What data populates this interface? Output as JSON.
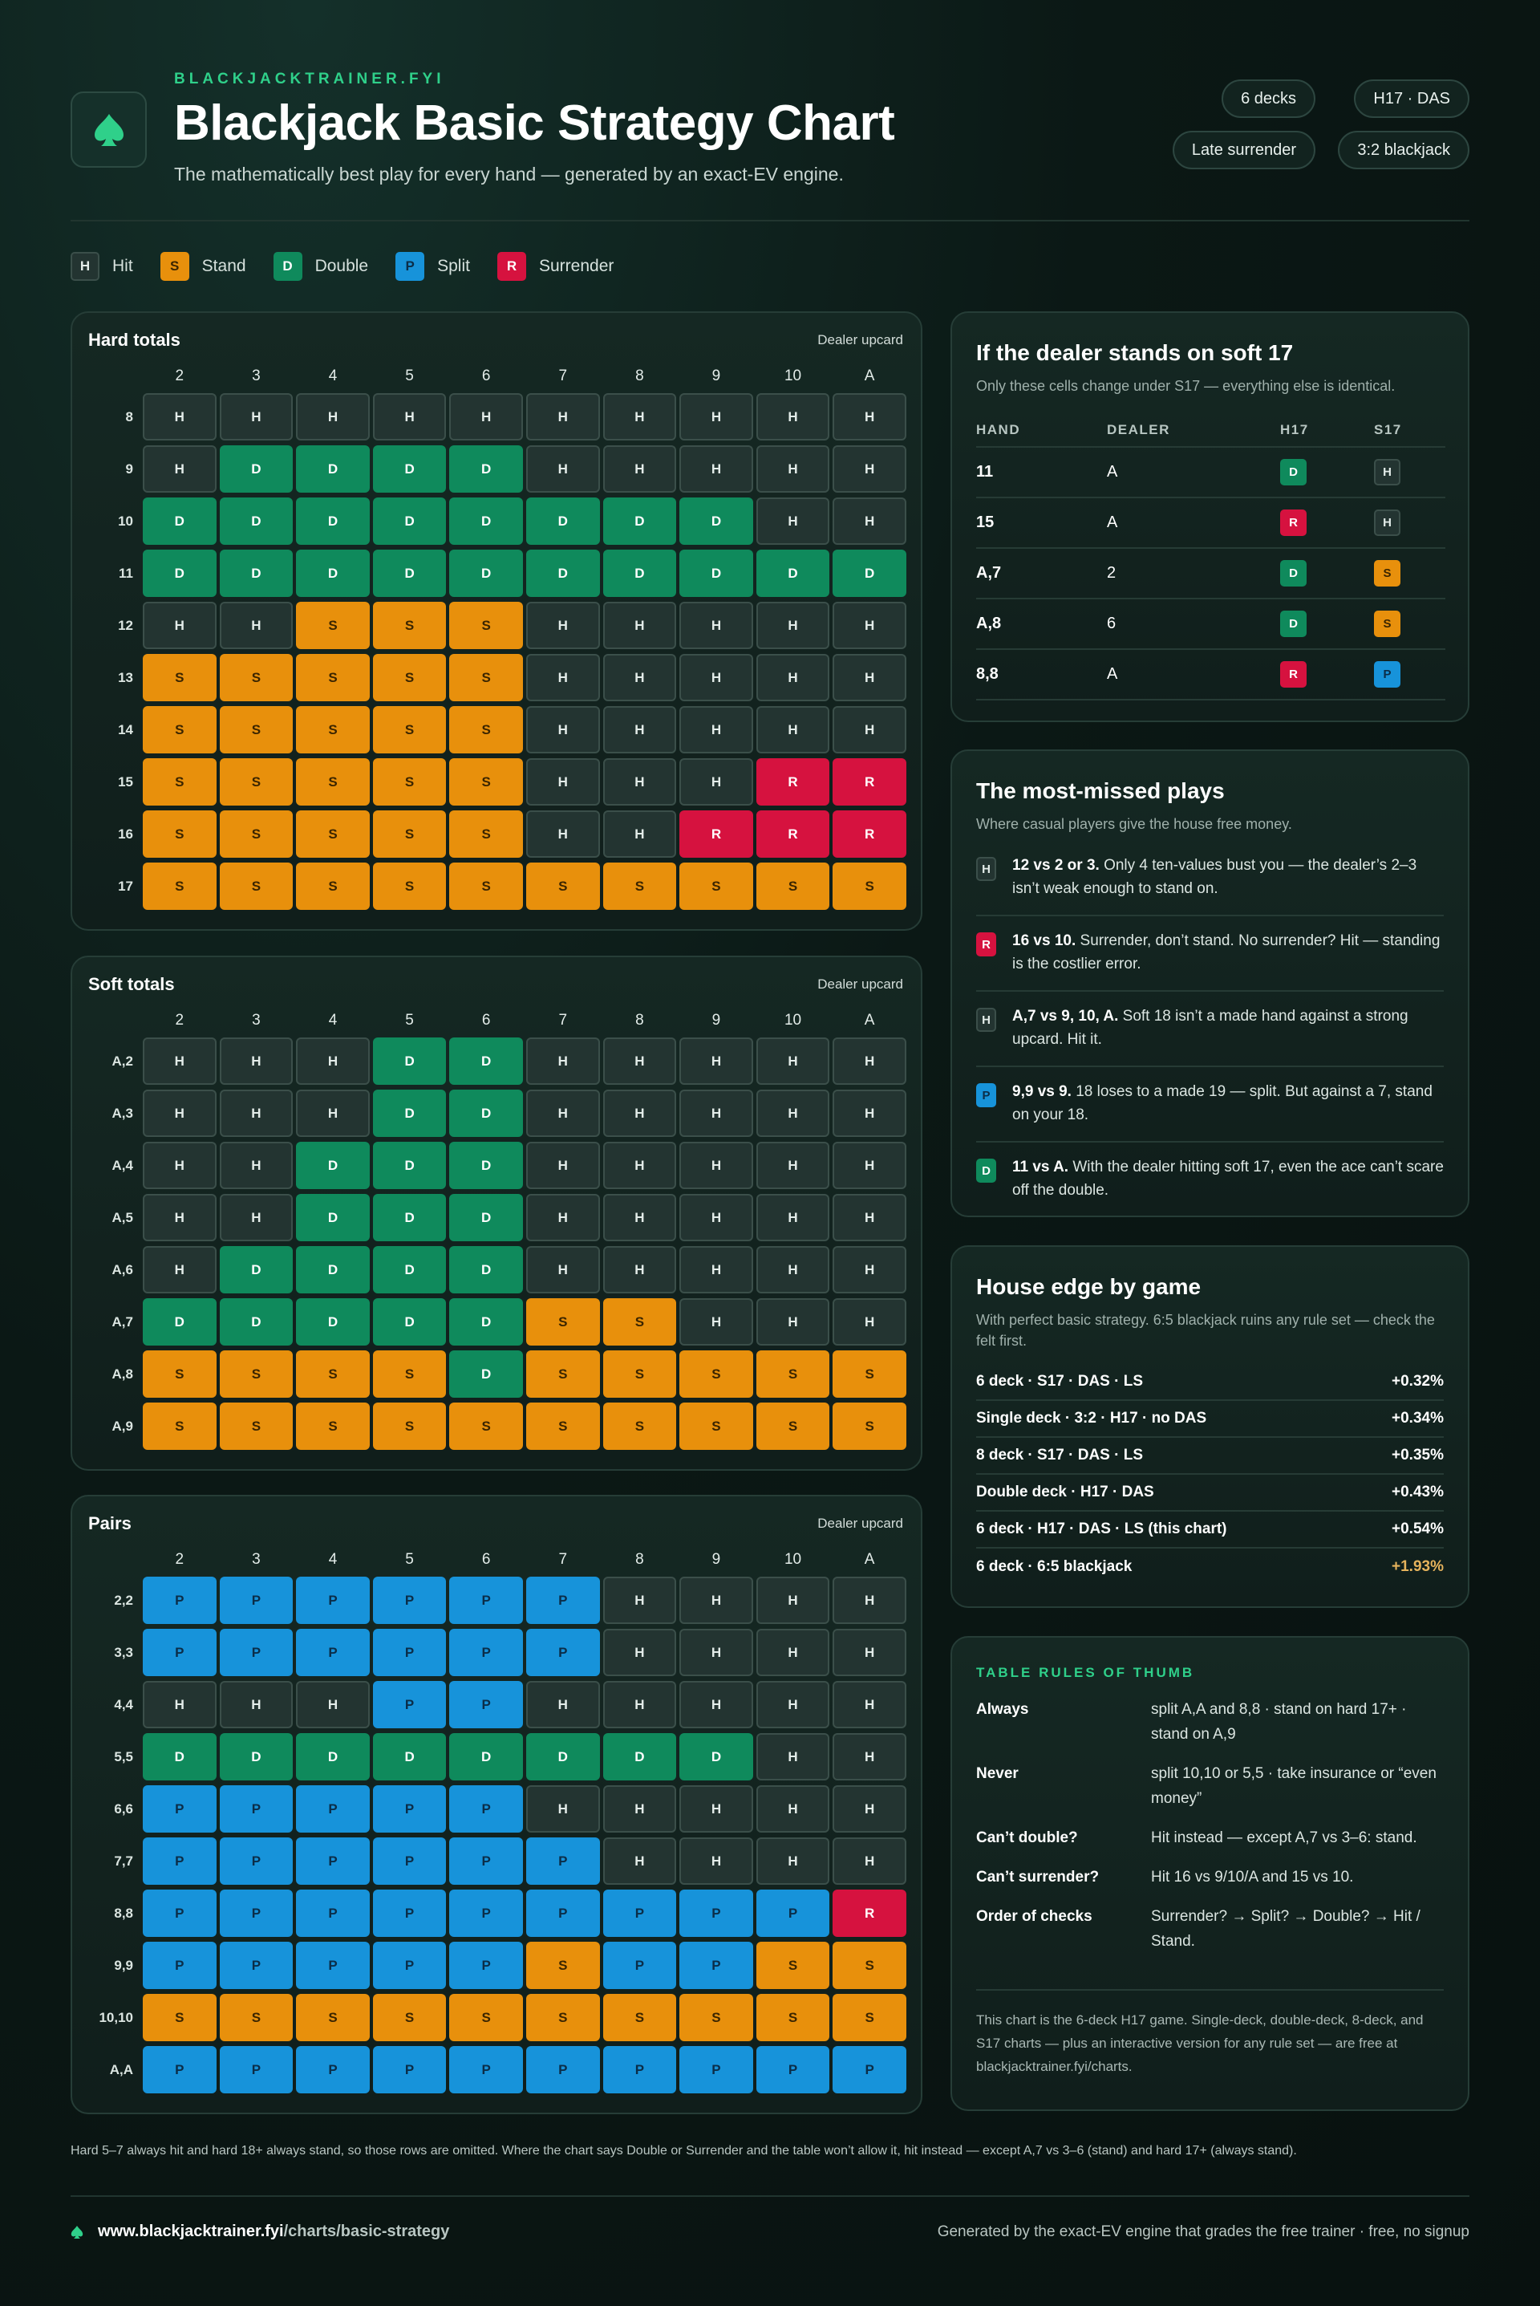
{
  "header": {
    "brand": "BLACKJACKTRAINER.FYI",
    "title": "Blackjack Basic Strategy Chart",
    "subtitle": "The mathematically best play for every hand — generated by an exact-EV engine.",
    "badges": [
      "6 decks",
      "H17 · DAS",
      "Late surrender",
      "3:2 blackjack"
    ]
  },
  "legend": [
    {
      "code": "H",
      "label": "Hit"
    },
    {
      "code": "S",
      "label": "Stand"
    },
    {
      "code": "D",
      "label": "Double"
    },
    {
      "code": "P",
      "label": "Split"
    },
    {
      "code": "R",
      "label": "Surrender"
    }
  ],
  "grids": {
    "hard": {
      "title": "Hard totals",
      "upcard_label": "Dealer upcard",
      "columns": [
        "2",
        "3",
        "4",
        "5",
        "6",
        "7",
        "8",
        "9",
        "10",
        "A"
      ],
      "rows": [
        {
          "label": "8",
          "cells": [
            "H",
            "H",
            "H",
            "H",
            "H",
            "H",
            "H",
            "H",
            "H",
            "H"
          ]
        },
        {
          "label": "9",
          "cells": [
            "H",
            "D",
            "D",
            "D",
            "D",
            "H",
            "H",
            "H",
            "H",
            "H"
          ]
        },
        {
          "label": "10",
          "cells": [
            "D",
            "D",
            "D",
            "D",
            "D",
            "D",
            "D",
            "D",
            "H",
            "H"
          ]
        },
        {
          "label": "11",
          "cells": [
            "D",
            "D",
            "D",
            "D",
            "D",
            "D",
            "D",
            "D",
            "D",
            "D"
          ]
        },
        {
          "label": "12",
          "cells": [
            "H",
            "H",
            "S",
            "S",
            "S",
            "H",
            "H",
            "H",
            "H",
            "H"
          ]
        },
        {
          "label": "13",
          "cells": [
            "S",
            "S",
            "S",
            "S",
            "S",
            "H",
            "H",
            "H",
            "H",
            "H"
          ]
        },
        {
          "label": "14",
          "cells": [
            "S",
            "S",
            "S",
            "S",
            "S",
            "H",
            "H",
            "H",
            "H",
            "H"
          ]
        },
        {
          "label": "15",
          "cells": [
            "S",
            "S",
            "S",
            "S",
            "S",
            "H",
            "H",
            "H",
            "R",
            "R"
          ]
        },
        {
          "label": "16",
          "cells": [
            "S",
            "S",
            "S",
            "S",
            "S",
            "H",
            "H",
            "R",
            "R",
            "R"
          ]
        },
        {
          "label": "17",
          "cells": [
            "S",
            "S",
            "S",
            "S",
            "S",
            "S",
            "S",
            "S",
            "S",
            "S"
          ]
        }
      ]
    },
    "soft": {
      "title": "Soft totals",
      "upcard_label": "Dealer upcard",
      "columns": [
        "2",
        "3",
        "4",
        "5",
        "6",
        "7",
        "8",
        "9",
        "10",
        "A"
      ],
      "rows": [
        {
          "label": "A,2",
          "cells": [
            "H",
            "H",
            "H",
            "D",
            "D",
            "H",
            "H",
            "H",
            "H",
            "H"
          ]
        },
        {
          "label": "A,3",
          "cells": [
            "H",
            "H",
            "H",
            "D",
            "D",
            "H",
            "H",
            "H",
            "H",
            "H"
          ]
        },
        {
          "label": "A,4",
          "cells": [
            "H",
            "H",
            "D",
            "D",
            "D",
            "H",
            "H",
            "H",
            "H",
            "H"
          ]
        },
        {
          "label": "A,5",
          "cells": [
            "H",
            "H",
            "D",
            "D",
            "D",
            "H",
            "H",
            "H",
            "H",
            "H"
          ]
        },
        {
          "label": "A,6",
          "cells": [
            "H",
            "D",
            "D",
            "D",
            "D",
            "H",
            "H",
            "H",
            "H",
            "H"
          ]
        },
        {
          "label": "A,7",
          "cells": [
            "D",
            "D",
            "D",
            "D",
            "D",
            "S",
            "S",
            "H",
            "H",
            "H"
          ]
        },
        {
          "label": "A,8",
          "cells": [
            "S",
            "S",
            "S",
            "S",
            "D",
            "S",
            "S",
            "S",
            "S",
            "S"
          ]
        },
        {
          "label": "A,9",
          "cells": [
            "S",
            "S",
            "S",
            "S",
            "S",
            "S",
            "S",
            "S",
            "S",
            "S"
          ]
        }
      ]
    },
    "pairs": {
      "title": "Pairs",
      "upcard_label": "Dealer upcard",
      "columns": [
        "2",
        "3",
        "4",
        "5",
        "6",
        "7",
        "8",
        "9",
        "10",
        "A"
      ],
      "rows": [
        {
          "label": "2,2",
          "cells": [
            "P",
            "P",
            "P",
            "P",
            "P",
            "P",
            "H",
            "H",
            "H",
            "H"
          ]
        },
        {
          "label": "3,3",
          "cells": [
            "P",
            "P",
            "P",
            "P",
            "P",
            "P",
            "H",
            "H",
            "H",
            "H"
          ]
        },
        {
          "label": "4,4",
          "cells": [
            "H",
            "H",
            "H",
            "P",
            "P",
            "H",
            "H",
            "H",
            "H",
            "H"
          ]
        },
        {
          "label": "5,5",
          "cells": [
            "D",
            "D",
            "D",
            "D",
            "D",
            "D",
            "D",
            "D",
            "H",
            "H"
          ]
        },
        {
          "label": "6,6",
          "cells": [
            "P",
            "P",
            "P",
            "P",
            "P",
            "H",
            "H",
            "H",
            "H",
            "H"
          ]
        },
        {
          "label": "7,7",
          "cells": [
            "P",
            "P",
            "P",
            "P",
            "P",
            "P",
            "H",
            "H",
            "H",
            "H"
          ]
        },
        {
          "label": "8,8",
          "cells": [
            "P",
            "P",
            "P",
            "P",
            "P",
            "P",
            "P",
            "P",
            "P",
            "R"
          ]
        },
        {
          "label": "9,9",
          "cells": [
            "P",
            "P",
            "P",
            "P",
            "P",
            "S",
            "P",
            "P",
            "S",
            "S"
          ]
        },
        {
          "label": "10,10",
          "cells": [
            "S",
            "S",
            "S",
            "S",
            "S",
            "S",
            "S",
            "S",
            "S",
            "S"
          ]
        },
        {
          "label": "A,A",
          "cells": [
            "P",
            "P",
            "P",
            "P",
            "P",
            "P",
            "P",
            "P",
            "P",
            "P"
          ]
        }
      ]
    }
  },
  "s17": {
    "title": "If the dealer stands on soft 17",
    "subtitle": "Only these cells change under S17 — everything else is identical.",
    "headers": [
      "HAND",
      "DEALER",
      "H17",
      "S17"
    ],
    "rows": [
      [
        "11",
        "A",
        "D",
        "H"
      ],
      [
        "15",
        "A",
        "R",
        "H"
      ],
      [
        "A,7",
        "2",
        "D",
        "S"
      ],
      [
        "A,8",
        "6",
        "D",
        "S"
      ],
      [
        "8,8",
        "A",
        "R",
        "P"
      ]
    ]
  },
  "missed": {
    "title": "The most-missed plays",
    "subtitle": "Where casual players give the house free money.",
    "items": [
      {
        "code": "H",
        "lead": "12 vs 2 or 3.",
        "text": "Only 4 ten-values bust you — the dealer’s 2–3 isn’t weak enough to stand on."
      },
      {
        "code": "R",
        "lead": "16 vs 10.",
        "text": "Surrender, don’t stand. No surrender? Hit — standing is the costlier error."
      },
      {
        "code": "H",
        "lead": "A,7 vs 9, 10, A.",
        "text": "Soft 18 isn’t a made hand against a strong upcard. Hit it."
      },
      {
        "code": "P",
        "lead": "9,9 vs 9.",
        "text": "18 loses to a made 19 — split. But against a 7, stand on your 18."
      },
      {
        "code": "D",
        "lead": "11 vs A.",
        "text": "With the dealer hitting soft 17, even the ace can’t scare off the double."
      }
    ]
  },
  "house_edge": {
    "title": "House edge by game",
    "subtitle": "With perfect basic strategy. 6:5 blackjack ruins any rule set — check the felt first.",
    "rows": [
      {
        "game": "6 deck · S17 · DAS · LS",
        "edge": "+0.32%"
      },
      {
        "game": "Single deck · 3:2 · H17 · no DAS",
        "edge": "+0.34%"
      },
      {
        "game": "8 deck · S17 · DAS · LS",
        "edge": "+0.35%"
      },
      {
        "game": "Double deck · H17 · DAS",
        "edge": "+0.43%"
      },
      {
        "game": "6 deck · H17 · DAS · LS (this chart)",
        "edge": "+0.54%"
      },
      {
        "game": "6 deck · 6:5 blackjack",
        "edge": "+1.93%"
      }
    ]
  },
  "rules": {
    "title": "TABLE RULES OF THUMB",
    "rows": [
      {
        "key": "Always",
        "value": "split A,A and 8,8 · stand on hard 17+ · stand on A,9"
      },
      {
        "key": "Never",
        "value": "split 10,10 or 5,5 · take insurance or “even money”"
      },
      {
        "key": "Can’t double?",
        "value": "Hit instead — except A,7 vs 3–6: stand."
      },
      {
        "key": "Can’t surrender?",
        "value": "Hit 16 vs 9/10/A and 15 vs 10."
      },
      {
        "key": "Order of checks",
        "value": "Surrender? → Split? → Double? → Hit / Stand."
      }
    ],
    "note": "This chart is the 6-deck H17 game. Single-deck, double-deck, 8-deck, and S17 charts — plus an interactive version for any rule set — are free at blackjacktrainer.fyi/charts."
  },
  "footnote": "Hard 5–7 always hit and hard 18+ always stand, so those rows are omitted. Where the chart says Double or Surrender and the table won’t allow it, hit instead — except A,7 vs 3–6 (stand) and hard 17+ (always stand).",
  "footer": {
    "url_host": "www.blackjacktrainer.fyi",
    "url_path": "/charts/basic-strategy",
    "right": "Generated by the exact-EV engine that grades the free trainer · free, no signup"
  }
}
